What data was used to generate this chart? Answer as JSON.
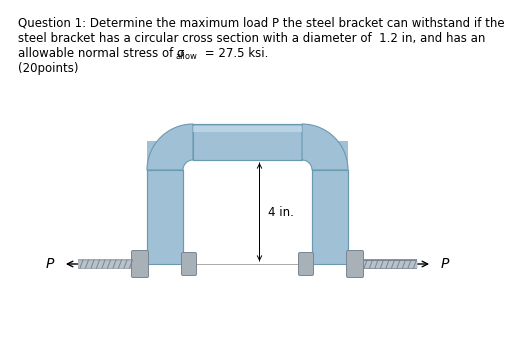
{
  "title_line1": "Question 1: Determine the maximum load P the steel bracket can withstand if the",
  "title_line2": "steel bracket has a circular cross section with a diameter of  1.2 in, and has an",
  "title_line3a": "allowable normal stress of σ",
  "title_line3b": "allow",
  "title_line3c": " = 27.5 ksi.",
  "title_line4": "(20points)",
  "label_4in": "4 in.",
  "label_P": "P",
  "bg_color": "#ffffff",
  "bracket_color_light": "#c5dce8",
  "bracket_color_mid": "#a0c0d5",
  "bracket_color_dark": "#6a9ab0",
  "bolt_color_light": "#c8cdd2",
  "bolt_color_mid": "#a8b0b8",
  "bolt_color_dark": "#7a8590",
  "font_size_text": 8.5,
  "font_size_P": 10
}
